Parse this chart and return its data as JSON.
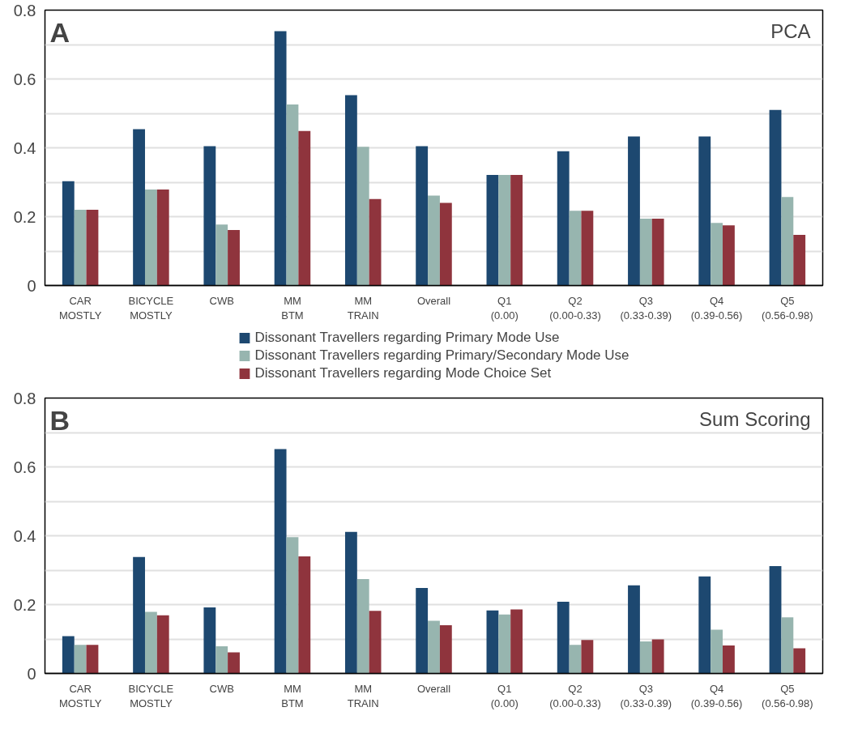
{
  "chart_data": [
    {
      "type": "bar",
      "title": "A",
      "subtitle": "PCA",
      "categories": [
        "CAR\nMOSTLY",
        "BICYCLE\nMOSTLY",
        "CWB",
        "MM\nBTM",
        "MM\nTRAIN",
        "Overall",
        "Q1\n(0.00)",
        "Q2\n(0.00-0.33)",
        "Q3\n(0.33-0.39)",
        "Q4\n(0.39-0.56)",
        "Q5\n(0.56-0.98)"
      ],
      "series": [
        {
          "name": "Dissonant Travellers regarding Primary Mode Use",
          "color": "#1d4870",
          "values": [
            0.303,
            0.454,
            0.405,
            0.739,
            0.553,
            0.405,
            0.321,
            0.39,
            0.433,
            0.433,
            0.51
          ]
        },
        {
          "name": "Dissonant Travellers regarding Primary/Secondary Mode Use",
          "color": "#97b5af",
          "values": [
            0.22,
            0.279,
            0.177,
            0.526,
            0.403,
            0.261,
            0.321,
            0.217,
            0.194,
            0.182,
            0.257
          ]
        },
        {
          "name": "Dissonant Travellers regarding Mode Choice Set",
          "color": "#8f343d",
          "values": [
            0.22,
            0.279,
            0.161,
            0.449,
            0.251,
            0.24,
            0.321,
            0.217,
            0.194,
            0.175,
            0.147
          ]
        }
      ],
      "ylim": [
        0,
        0.8
      ],
      "yticks": [
        0,
        {
          "value": 0.1,
          "label": null
        },
        0.2,
        {
          "value": 0.3,
          "label": null
        },
        0.4,
        {
          "value": 0.5,
          "label": null
        },
        0.6,
        {
          "value": 0.7,
          "label": null
        },
        0.8
      ],
      "grid": "y",
      "legend": "bottom"
    },
    {
      "type": "bar",
      "title": "B",
      "subtitle": "Sum Scoring",
      "categories": [
        "CAR\nMOSTLY",
        "BICYCLE\nMOSTLY",
        "CWB",
        "MM\nBTM",
        "MM\nTRAIN",
        "Overall",
        "Q1\n(0.00)",
        "Q2\n(0.00-0.33)",
        "Q3\n(0.33-0.39)",
        "Q4\n(0.39-0.56)",
        "Q5\n(0.56-0.98)"
      ],
      "series": [
        {
          "color": "#1d4870",
          "values": [
            0.108,
            0.338,
            0.192,
            0.652,
            0.411,
            0.248,
            0.183,
            0.208,
            0.256,
            0.282,
            0.312
          ]
        },
        {
          "color": "#97b5af",
          "values": [
            0.083,
            0.179,
            0.079,
            0.396,
            0.274,
            0.153,
            0.171,
            0.083,
            0.093,
            0.127,
            0.163
          ]
        },
        {
          "color": "#8f343d",
          "values": [
            0.083,
            0.169,
            0.061,
            0.34,
            0.182,
            0.14,
            0.186,
            0.097,
            0.099,
            0.081,
            0.073
          ]
        }
      ],
      "ylim": [
        0,
        0.8
      ],
      "yticks": [
        0,
        {
          "value": 0.1,
          "label": null
        },
        0.2,
        {
          "value": 0.3,
          "label": null
        },
        0.4,
        {
          "value": 0.5,
          "label": null
        },
        0.6,
        {
          "value": 0.7,
          "label": null
        },
        0.8
      ],
      "grid": "y"
    }
  ]
}
